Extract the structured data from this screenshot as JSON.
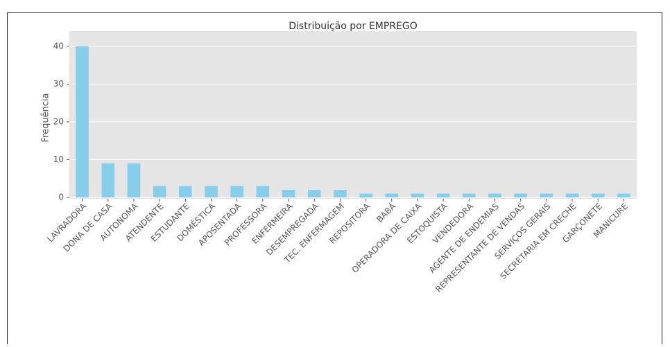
{
  "chart_data": {
    "type": "bar",
    "title": "Distribuição por EMPREGO",
    "y_label": "Frequência",
    "categories": [
      "LAVRADORA",
      "DONA DE CASA",
      "AUTONOMA",
      "ATENDENTE",
      "ESTUDANTE",
      "DOMÉSTICA",
      "APOSENTADA",
      "PROFESSORA",
      "ENFERMEIRA",
      "DESEMPREGADA",
      "TEC. ENFERMAGEM",
      "REPOSITORA",
      "BABÁ",
      "OPERADORA DE CAIXA",
      "ESTOQUISTA",
      "VENDEDORA",
      "AGENTE DE ENDEMIAS",
      "REPRESENTANTE DE VENDAS",
      "SERVIÇOS GERAIS",
      "SECRETARIA EM CRECHE",
      "GARÇONETE",
      "MANICURE"
    ],
    "values": [
      40,
      9,
      9,
      3,
      3,
      3,
      3,
      3,
      2,
      2,
      2,
      1,
      1,
      1,
      1,
      1,
      1,
      1,
      1,
      1,
      1,
      1
    ],
    "color": "#87ceeb",
    "ylim": [
      0,
      44
    ],
    "yticks": [
      0,
      10,
      20,
      30,
      40
    ],
    "grid": true
  }
}
